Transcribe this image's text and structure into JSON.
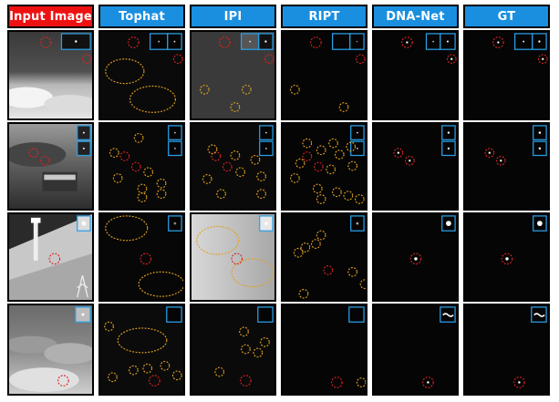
{
  "headers": [
    {
      "label": "Input Image",
      "color": "#ee1111"
    },
    {
      "label": "Tophat",
      "color": "#1a8fe0"
    },
    {
      "label": "IPI",
      "color": "#1a8fe0"
    },
    {
      "label": "RIPT",
      "color": "#1a8fe0"
    },
    {
      "label": "DNA-Net",
      "color": "#1a8fe0"
    },
    {
      "label": "GT",
      "color": "#1a8fe0"
    }
  ],
  "colors": {
    "target_circle": "#dd2222",
    "false_alarm_circle": "#e0a020",
    "inset_border": "#2aa0e8",
    "frame_border": "#000000"
  },
  "rows": [
    {
      "scene": "smoky-ground",
      "tophat_bg": "dark",
      "ipi_bg": "grey",
      "has_two_targets": false
    },
    {
      "scene": "trees-building",
      "tophat_bg": "dark",
      "ipi_bg": "dark",
      "has_two_targets": true
    },
    {
      "scene": "snow-slope-tower",
      "tophat_bg": "dark",
      "ipi_bg": "light",
      "has_two_targets": false
    },
    {
      "scene": "cloud-sky",
      "tophat_bg": "dark",
      "ipi_bg": "dark",
      "has_two_targets": false
    }
  ]
}
